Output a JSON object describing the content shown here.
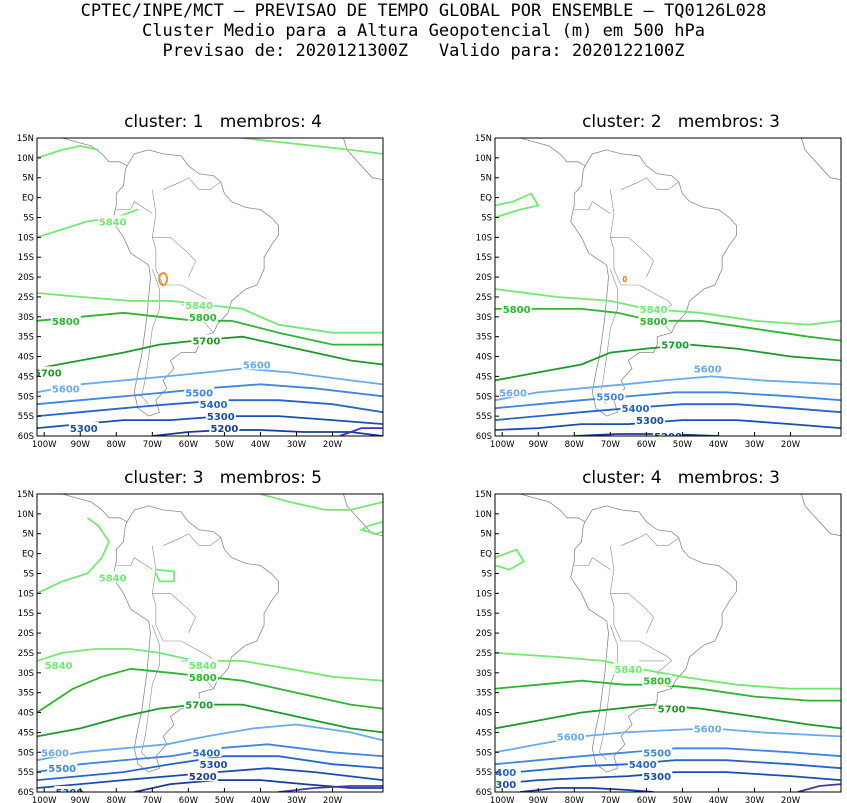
{
  "header": {
    "line1": "CPTEC/INPE/MCT — PREVISAO DE TEMPO GLOBAL POR ENSEMBLE — TQ0126L028",
    "line2": "Cluster Medio para a Altura Geopotencial (m) em 500 hPa",
    "line3": "Previsao de: 2020121300Z   Valido para: 2020122100Z"
  },
  "lat_ticks": [
    "15N",
    "10N",
    "5N",
    "EQ",
    "5S",
    "10S",
    "15S",
    "20S",
    "25S",
    "30S",
    "35S",
    "40S",
    "45S",
    "50S",
    "55S",
    "60S"
  ],
  "lon_ticks": [
    "100W",
    "90W",
    "80W",
    "70W",
    "60W",
    "50W",
    "40W",
    "30W",
    "20W"
  ],
  "contour_colors": {
    "5840": "#73e873",
    "5800": "#2fb52f",
    "5700": "#1a9a2a",
    "5600": "#6aaaf0",
    "5500": "#3f86e0",
    "5400": "#2666c8",
    "5300": "#1a4fae",
    "5200": "#163e95",
    "5100": "#4a35a8",
    "high": "#f08c1e",
    "land": "#8a8a8a"
  },
  "panels": [
    {
      "title": "cluster: 1   membros: 4",
      "labels": [
        {
          "text": "5840",
          "lon": -81,
          "lat": -6,
          "lvl": "5840"
        },
        {
          "text": "5840",
          "lon": -57,
          "lat": -27,
          "lvl": "5840"
        },
        {
          "text": "5800",
          "lon": -94,
          "lat": -31,
          "lvl": "5800"
        },
        {
          "text": "5800",
          "lon": -56,
          "lat": -30,
          "lvl": "5800"
        },
        {
          "text": "5700",
          "lon": -99,
          "lat": -44,
          "lvl": "5700"
        },
        {
          "text": "5700",
          "lon": -55,
          "lat": -36,
          "lvl": "5700"
        },
        {
          "text": "5600",
          "lon": -94,
          "lat": -48,
          "lvl": "5600"
        },
        {
          "text": "5600",
          "lon": -41,
          "lat": -42,
          "lvl": "5600"
        },
        {
          "text": "5500",
          "lon": -57,
          "lat": -49,
          "lvl": "5500"
        },
        {
          "text": "5400",
          "lon": -53,
          "lat": -52,
          "lvl": "5400"
        },
        {
          "text": "5300",
          "lon": -51,
          "lat": -55,
          "lvl": "5300"
        },
        {
          "text": "5300",
          "lon": -89,
          "lat": -58,
          "lvl": "5300"
        },
        {
          "text": "5200",
          "lon": -50,
          "lat": -58,
          "lvl": "5200"
        }
      ]
    },
    {
      "title": "cluster: 2   membros: 3",
      "labels": [
        {
          "text": "5800",
          "lon": -96,
          "lat": -28,
          "lvl": "5800"
        },
        {
          "text": "5840",
          "lon": -58,
          "lat": -28,
          "lvl": "5840"
        },
        {
          "text": "5800",
          "lon": -58,
          "lat": -31,
          "lvl": "5800"
        },
        {
          "text": "5700",
          "lon": -52,
          "lat": -37,
          "lvl": "5700"
        },
        {
          "text": "5600",
          "lon": -97,
          "lat": -49,
          "lvl": "5600"
        },
        {
          "text": "5600",
          "lon": -43,
          "lat": -43,
          "lvl": "5600"
        },
        {
          "text": "5500",
          "lon": -70,
          "lat": -50,
          "lvl": "5500"
        },
        {
          "text": "5400",
          "lon": -63,
          "lat": -53,
          "lvl": "5400"
        },
        {
          "text": "5300",
          "lon": -59,
          "lat": -56,
          "lvl": "5300"
        },
        {
          "text": "5200",
          "lon": -54,
          "lat": -60,
          "lvl": "5200"
        }
      ]
    },
    {
      "title": "cluster: 3   membros: 5",
      "labels": [
        {
          "text": "5840",
          "lon": -81,
          "lat": -6,
          "lvl": "5840"
        },
        {
          "text": "5840",
          "lon": -96,
          "lat": -28,
          "lvl": "5840"
        },
        {
          "text": "5840",
          "lon": -56,
          "lat": -28,
          "lvl": "5840"
        },
        {
          "text": "5800",
          "lon": -56,
          "lat": -31,
          "lvl": "5800"
        },
        {
          "text": "5700",
          "lon": -57,
          "lat": -38,
          "lvl": "5700"
        },
        {
          "text": "5600",
          "lon": -97,
          "lat": -50,
          "lvl": "5600"
        },
        {
          "text": "5500",
          "lon": -95,
          "lat": -54,
          "lvl": "5500"
        },
        {
          "text": "5400",
          "lon": -55,
          "lat": -50,
          "lvl": "5400"
        },
        {
          "text": "5300",
          "lon": -53,
          "lat": -53,
          "lvl": "5300"
        },
        {
          "text": "5200",
          "lon": -56,
          "lat": -56,
          "lvl": "5200"
        },
        {
          "text": "5300",
          "lon": -93,
          "lat": -60,
          "lvl": "5300"
        }
      ]
    },
    {
      "title": "cluster: 4   membros: 3",
      "labels": [
        {
          "text": "5840",
          "lon": -65,
          "lat": -29,
          "lvl": "5840"
        },
        {
          "text": "5800",
          "lon": -57,
          "lat": -32,
          "lvl": "5800"
        },
        {
          "text": "5700",
          "lon": -53,
          "lat": -39,
          "lvl": "5700"
        },
        {
          "text": "5600",
          "lon": -81,
          "lat": -46,
          "lvl": "5600"
        },
        {
          "text": "5600",
          "lon": -43,
          "lat": -44,
          "lvl": "5600"
        },
        {
          "text": "5500",
          "lon": -57,
          "lat": -50,
          "lvl": "5500"
        },
        {
          "text": "5400",
          "lon": -61,
          "lat": -53,
          "lvl": "5400"
        },
        {
          "text": "5300",
          "lon": -57,
          "lat": -56,
          "lvl": "5300"
        },
        {
          "text": "400",
          "lon": -99,
          "lat": -55,
          "lvl": "5400"
        },
        {
          "text": "300",
          "lon": -99,
          "lat": -58,
          "lvl": "5300"
        }
      ]
    }
  ]
}
